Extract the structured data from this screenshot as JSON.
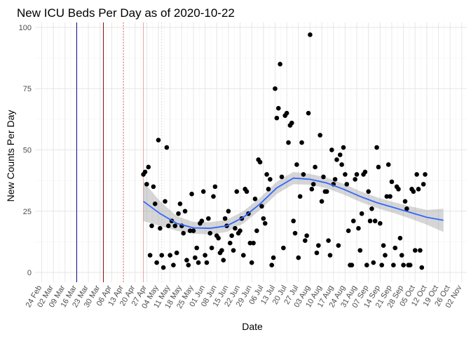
{
  "chart_data": {
    "type": "scatter",
    "title": "New ICU Beds Per Day as of 2020-10-22",
    "xlabel": "Date",
    "ylabel": "New Counts Per Day",
    "xlim": [
      "2020-02-20",
      "2020-11-05"
    ],
    "ylim": [
      -4,
      102
    ],
    "grid": true,
    "legend": "none",
    "y_ticks": [
      0,
      25,
      50,
      75,
      100
    ],
    "x_ticks": [
      {
        "date": "2020-02-24",
        "label": "24 Feb"
      },
      {
        "date": "2020-03-02",
        "label": "02 Mar"
      },
      {
        "date": "2020-03-09",
        "label": "09 Mar"
      },
      {
        "date": "2020-03-16",
        "label": "16 Mar"
      },
      {
        "date": "2020-03-23",
        "label": "23 Mar"
      },
      {
        "date": "2020-03-30",
        "label": "30 Mar"
      },
      {
        "date": "2020-04-06",
        "label": "06 Apr"
      },
      {
        "date": "2020-04-13",
        "label": "13 Apr"
      },
      {
        "date": "2020-04-20",
        "label": "20 Apr"
      },
      {
        "date": "2020-04-27",
        "label": "27 Apr"
      },
      {
        "date": "2020-05-04",
        "label": "04 May"
      },
      {
        "date": "2020-05-11",
        "label": "11 May"
      },
      {
        "date": "2020-05-18",
        "label": "18 May"
      },
      {
        "date": "2020-05-25",
        "label": "25 May"
      },
      {
        "date": "2020-06-01",
        "label": "01 Jun"
      },
      {
        "date": "2020-06-08",
        "label": "08 Jun"
      },
      {
        "date": "2020-06-15",
        "label": "15 Jun"
      },
      {
        "date": "2020-06-22",
        "label": "22 Jun"
      },
      {
        "date": "2020-06-29",
        "label": "29 Jun"
      },
      {
        "date": "2020-07-06",
        "label": "06 Jul"
      },
      {
        "date": "2020-07-13",
        "label": "13 Jul"
      },
      {
        "date": "2020-07-20",
        "label": "20 Jul"
      },
      {
        "date": "2020-07-27",
        "label": "27 Jul"
      },
      {
        "date": "2020-08-03",
        "label": "03 Aug"
      },
      {
        "date": "2020-08-10",
        "label": "10 Aug"
      },
      {
        "date": "2020-08-17",
        "label": "17 Aug"
      },
      {
        "date": "2020-08-24",
        "label": "24 Aug"
      },
      {
        "date": "2020-08-31",
        "label": "31 Aug"
      },
      {
        "date": "2020-09-07",
        "label": "07 Sep"
      },
      {
        "date": "2020-09-14",
        "label": "14 Sep"
      },
      {
        "date": "2020-09-21",
        "label": "21 Sep"
      },
      {
        "date": "2020-09-28",
        "label": "28 Sep"
      },
      {
        "date": "2020-10-05",
        "label": "05 Oct"
      },
      {
        "date": "2020-10-12",
        "label": "12 Oct"
      },
      {
        "date": "2020-10-19",
        "label": "19 Oct"
      },
      {
        "date": "2020-10-26",
        "label": "26 Oct"
      },
      {
        "date": "2020-11-02",
        "label": "02 Nov"
      }
    ],
    "vlines": [
      {
        "date": "2020-03-16",
        "color": "#1a1a8c",
        "style": "solid"
      },
      {
        "date": "2020-04-01",
        "color": "#8b1a1a",
        "style": "solid"
      },
      {
        "date": "2020-04-13",
        "color": "#e0504a",
        "style": "dotted"
      },
      {
        "date": "2020-04-25",
        "color": "#e8a8a8",
        "style": "solid"
      },
      {
        "date": "2020-05-06",
        "color": "#d0d0d0",
        "style": "dotted"
      }
    ],
    "points_color": "#000000",
    "trend": {
      "color": "#3366ff",
      "band_color": "#999999",
      "x": [
        "2020-04-25",
        "2020-05-05",
        "2020-05-15",
        "2020-05-25",
        "2020-06-04",
        "2020-06-14",
        "2020-06-24",
        "2020-07-04",
        "2020-07-14",
        "2020-07-24",
        "2020-08-03",
        "2020-08-13",
        "2020-08-23",
        "2020-09-02",
        "2020-09-12",
        "2020-09-22",
        "2020-10-02",
        "2020-10-12",
        "2020-10-22"
      ],
      "y": [
        29,
        24,
        20,
        18.2,
        18,
        19,
        22.5,
        28,
        34.5,
        38.5,
        38,
        36.5,
        34,
        31,
        28.5,
        26.5,
        24.5,
        22.5,
        21.3
      ],
      "lower": [
        21,
        19,
        17,
        15.8,
        15.5,
        16.5,
        20,
        25.5,
        32,
        36,
        35.8,
        34.3,
        31.8,
        28.8,
        26.3,
        24.3,
        22,
        19.5,
        16.5
      ],
      "upper": [
        37,
        29,
        23,
        20.6,
        20.5,
        21.5,
        25,
        30.5,
        37,
        41,
        40.2,
        38.7,
        36.2,
        33.2,
        30.7,
        28.7,
        27,
        25.5,
        26
      ]
    },
    "points": [
      {
        "x": "2020-04-25",
        "y": 40
      },
      {
        "x": "2020-04-26",
        "y": 41
      },
      {
        "x": "2020-04-27",
        "y": 36
      },
      {
        "x": "2020-04-28",
        "y": 43
      },
      {
        "x": "2020-04-29",
        "y": 7
      },
      {
        "x": "2020-04-30",
        "y": 19
      },
      {
        "x": "2020-05-01",
        "y": 35
      },
      {
        "x": "2020-05-02",
        "y": 28
      },
      {
        "x": "2020-05-03",
        "y": 4
      },
      {
        "x": "2020-05-04",
        "y": 54
      },
      {
        "x": "2020-05-05",
        "y": 18
      },
      {
        "x": "2020-05-06",
        "y": 7
      },
      {
        "x": "2020-05-07",
        "y": 2
      },
      {
        "x": "2020-05-08",
        "y": 29
      },
      {
        "x": "2020-05-09",
        "y": 51
      },
      {
        "x": "2020-05-10",
        "y": 19
      },
      {
        "x": "2020-05-11",
        "y": 7
      },
      {
        "x": "2020-05-12",
        "y": 21
      },
      {
        "x": "2020-05-13",
        "y": 3
      },
      {
        "x": "2020-05-14",
        "y": 19
      },
      {
        "x": "2020-05-15",
        "y": 8
      },
      {
        "x": "2020-05-16",
        "y": 24
      },
      {
        "x": "2020-05-17",
        "y": 28
      },
      {
        "x": "2020-05-18",
        "y": 19
      },
      {
        "x": "2020-05-19",
        "y": 16
      },
      {
        "x": "2020-05-20",
        "y": 25
      },
      {
        "x": "2020-05-21",
        "y": 5
      },
      {
        "x": "2020-05-22",
        "y": 3
      },
      {
        "x": "2020-05-23",
        "y": 17
      },
      {
        "x": "2020-05-24",
        "y": 32
      },
      {
        "x": "2020-05-25",
        "y": 17
      },
      {
        "x": "2020-05-26",
        "y": 6
      },
      {
        "x": "2020-05-27",
        "y": 10
      },
      {
        "x": "2020-05-28",
        "y": 4
      },
      {
        "x": "2020-05-29",
        "y": 20
      },
      {
        "x": "2020-05-30",
        "y": 21
      },
      {
        "x": "2020-05-31",
        "y": 33
      },
      {
        "x": "2020-06-01",
        "y": 7
      },
      {
        "x": "2020-06-02",
        "y": 4
      },
      {
        "x": "2020-06-03",
        "y": 22
      },
      {
        "x": "2020-06-04",
        "y": 16
      },
      {
        "x": "2020-06-05",
        "y": 10
      },
      {
        "x": "2020-06-06",
        "y": 31
      },
      {
        "x": "2020-06-07",
        "y": 35
      },
      {
        "x": "2020-06-08",
        "y": 15
      },
      {
        "x": "2020-06-09",
        "y": 14
      },
      {
        "x": "2020-06-10",
        "y": 8
      },
      {
        "x": "2020-06-11",
        "y": 9
      },
      {
        "x": "2020-06-12",
        "y": 5
      },
      {
        "x": "2020-06-13",
        "y": 22
      },
      {
        "x": "2020-06-14",
        "y": 19
      },
      {
        "x": "2020-06-15",
        "y": 25
      },
      {
        "x": "2020-06-16",
        "y": 12
      },
      {
        "x": "2020-06-17",
        "y": 15
      },
      {
        "x": "2020-06-18",
        "y": 9
      },
      {
        "x": "2020-06-19",
        "y": 18
      },
      {
        "x": "2020-06-20",
        "y": 33
      },
      {
        "x": "2020-06-21",
        "y": 16
      },
      {
        "x": "2020-06-22",
        "y": 17
      },
      {
        "x": "2020-06-23",
        "y": 22
      },
      {
        "x": "2020-06-24",
        "y": 7
      },
      {
        "x": "2020-06-25",
        "y": 34
      },
      {
        "x": "2020-06-26",
        "y": 33
      },
      {
        "x": "2020-06-27",
        "y": 24
      },
      {
        "x": "2020-06-28",
        "y": 12
      },
      {
        "x": "2020-06-29",
        "y": 4
      },
      {
        "x": "2020-06-30",
        "y": 12
      },
      {
        "x": "2020-07-01",
        "y": 30
      },
      {
        "x": "2020-07-02",
        "y": 17
      },
      {
        "x": "2020-07-03",
        "y": 46
      },
      {
        "x": "2020-07-04",
        "y": 45
      },
      {
        "x": "2020-07-05",
        "y": 27
      },
      {
        "x": "2020-07-06",
        "y": 22
      },
      {
        "x": "2020-07-07",
        "y": 20
      },
      {
        "x": "2020-07-08",
        "y": 40
      },
      {
        "x": "2020-07-09",
        "y": 34
      },
      {
        "x": "2020-07-10",
        "y": 38
      },
      {
        "x": "2020-07-11",
        "y": 3
      },
      {
        "x": "2020-07-12",
        "y": 6
      },
      {
        "x": "2020-07-13",
        "y": 75
      },
      {
        "x": "2020-07-14",
        "y": 63
      },
      {
        "x": "2020-07-15",
        "y": 67
      },
      {
        "x": "2020-07-16",
        "y": 85
      },
      {
        "x": "2020-07-17",
        "y": 39
      },
      {
        "x": "2020-07-18",
        "y": 10
      },
      {
        "x": "2020-07-19",
        "y": 64
      },
      {
        "x": "2020-07-20",
        "y": 65
      },
      {
        "x": "2020-07-21",
        "y": 53
      },
      {
        "x": "2020-07-22",
        "y": 60
      },
      {
        "x": "2020-07-23",
        "y": 61
      },
      {
        "x": "2020-07-24",
        "y": 21
      },
      {
        "x": "2020-07-25",
        "y": 16
      },
      {
        "x": "2020-07-26",
        "y": 44
      },
      {
        "x": "2020-07-27",
        "y": 6
      },
      {
        "x": "2020-07-28",
        "y": 31
      },
      {
        "x": "2020-07-29",
        "y": 53
      },
      {
        "x": "2020-07-30",
        "y": 40
      },
      {
        "x": "2020-07-31",
        "y": 13
      },
      {
        "x": "2020-08-01",
        "y": 15
      },
      {
        "x": "2020-08-02",
        "y": 65
      },
      {
        "x": "2020-08-03",
        "y": 97
      },
      {
        "x": "2020-08-04",
        "y": 34
      },
      {
        "x": "2020-08-05",
        "y": 36
      },
      {
        "x": "2020-08-06",
        "y": 43
      },
      {
        "x": "2020-08-07",
        "y": 8
      },
      {
        "x": "2020-08-08",
        "y": 11
      },
      {
        "x": "2020-08-09",
        "y": 56
      },
      {
        "x": "2020-08-10",
        "y": 29
      },
      {
        "x": "2020-08-11",
        "y": 39
      },
      {
        "x": "2020-08-12",
        "y": 33
      },
      {
        "x": "2020-08-13",
        "y": 33
      },
      {
        "x": "2020-08-14",
        "y": 13
      },
      {
        "x": "2020-08-15",
        "y": 7
      },
      {
        "x": "2020-08-16",
        "y": 50
      },
      {
        "x": "2020-08-17",
        "y": 36
      },
      {
        "x": "2020-08-18",
        "y": 38
      },
      {
        "x": "2020-08-19",
        "y": 46
      },
      {
        "x": "2020-08-20",
        "y": 11
      },
      {
        "x": "2020-08-21",
        "y": 48
      },
      {
        "x": "2020-08-22",
        "y": 44
      },
      {
        "x": "2020-08-23",
        "y": 51
      },
      {
        "x": "2020-08-24",
        "y": 40
      },
      {
        "x": "2020-08-25",
        "y": 36
      },
      {
        "x": "2020-08-26",
        "y": 17
      },
      {
        "x": "2020-08-27",
        "y": 3
      },
      {
        "x": "2020-08-28",
        "y": 3
      },
      {
        "x": "2020-08-29",
        "y": 21
      },
      {
        "x": "2020-08-30",
        "y": 38
      },
      {
        "x": "2020-08-31",
        "y": 40
      },
      {
        "x": "2020-09-01",
        "y": 18
      },
      {
        "x": "2020-09-02",
        "y": 9
      },
      {
        "x": "2020-09-03",
        "y": 24
      },
      {
        "x": "2020-09-04",
        "y": 40
      },
      {
        "x": "2020-09-05",
        "y": 41
      },
      {
        "x": "2020-09-06",
        "y": 3
      },
      {
        "x": "2020-09-07",
        "y": 33
      },
      {
        "x": "2020-09-08",
        "y": 21
      },
      {
        "x": "2020-09-09",
        "y": 26
      },
      {
        "x": "2020-09-10",
        "y": 4
      },
      {
        "x": "2020-09-11",
        "y": 21
      },
      {
        "x": "2020-09-12",
        "y": 51
      },
      {
        "x": "2020-09-13",
        "y": 43
      },
      {
        "x": "2020-09-14",
        "y": 20
      },
      {
        "x": "2020-09-15",
        "y": 3
      },
      {
        "x": "2020-09-16",
        "y": 11
      },
      {
        "x": "2020-09-17",
        "y": 7
      },
      {
        "x": "2020-09-18",
        "y": 31
      },
      {
        "x": "2020-09-19",
        "y": 44
      },
      {
        "x": "2020-09-20",
        "y": 31
      },
      {
        "x": "2020-09-21",
        "y": 37
      },
      {
        "x": "2020-09-22",
        "y": 3
      },
      {
        "x": "2020-09-23",
        "y": 10
      },
      {
        "x": "2020-09-24",
        "y": 35
      },
      {
        "x": "2020-09-25",
        "y": 34
      },
      {
        "x": "2020-09-26",
        "y": 14
      },
      {
        "x": "2020-09-27",
        "y": 7
      },
      {
        "x": "2020-09-28",
        "y": 3
      },
      {
        "x": "2020-09-29",
        "y": 29
      },
      {
        "x": "2020-09-30",
        "y": 26
      },
      {
        "x": "2020-10-01",
        "y": 3
      },
      {
        "x": "2020-10-02",
        "y": 3
      },
      {
        "x": "2020-10-03",
        "y": 34
      },
      {
        "x": "2020-10-04",
        "y": 33
      },
      {
        "x": "2020-10-05",
        "y": 9
      },
      {
        "x": "2020-10-06",
        "y": 40
      },
      {
        "x": "2020-10-07",
        "y": 34
      },
      {
        "x": "2020-10-08",
        "y": 9
      },
      {
        "x": "2020-10-09",
        "y": 2
      },
      {
        "x": "2020-10-10",
        "y": 36
      },
      {
        "x": "2020-10-11",
        "y": 40
      }
    ]
  }
}
